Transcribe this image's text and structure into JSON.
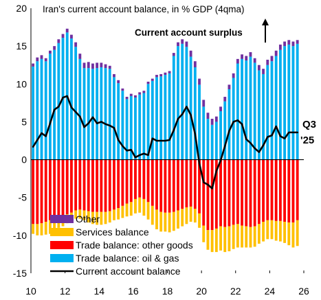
{
  "chart_data": {
    "type": "bar",
    "title": "Iran's current account balance, in % GDP (4qma)",
    "annotation": "Current account surplus",
    "end_label": [
      "Q3",
      "'25"
    ],
    "ylim": [
      -15,
      20
    ],
    "yticks": [
      20,
      15,
      10,
      5,
      0,
      -5,
      -10,
      -15
    ],
    "xlim": [
      2010,
      2026
    ],
    "xticks": [
      {
        "value": 2010,
        "label": "10"
      },
      {
        "value": 2012,
        "label": "12"
      },
      {
        "value": 2014,
        "label": "14"
      },
      {
        "value": 2016,
        "label": "16"
      },
      {
        "value": 2018,
        "label": "18"
      },
      {
        "value": 2020,
        "label": "20"
      },
      {
        "value": 2022,
        "label": "22"
      },
      {
        "value": 2024,
        "label": "24"
      },
      {
        "value": 2026,
        "label": "26"
      }
    ],
    "x": [
      2010.0,
      2010.25,
      2010.5,
      2010.75,
      2011.0,
      2011.25,
      2011.5,
      2011.75,
      2012.0,
      2012.25,
      2012.5,
      2012.75,
      2013.0,
      2013.25,
      2013.5,
      2013.75,
      2014.0,
      2014.25,
      2014.5,
      2014.75,
      2015.0,
      2015.25,
      2015.5,
      2015.75,
      2016.0,
      2016.25,
      2016.5,
      2016.75,
      2017.0,
      2017.25,
      2017.5,
      2017.75,
      2018.0,
      2018.25,
      2018.5,
      2018.75,
      2019.0,
      2019.25,
      2019.5,
      2019.75,
      2020.0,
      2020.25,
      2020.5,
      2020.75,
      2021.0,
      2021.25,
      2021.5,
      2021.75,
      2022.0,
      2022.25,
      2022.5,
      2022.75,
      2023.0,
      2023.25,
      2023.5,
      2023.75,
      2024.0,
      2024.25,
      2024.5,
      2024.75,
      2025.0,
      2025.25,
      2025.5
    ],
    "series": [
      {
        "name": "Other",
        "color": "#7030a0",
        "values": [
          0.4,
          0.5,
          0.5,
          0.4,
          0.4,
          0.5,
          0.5,
          0.5,
          0.5,
          0.5,
          0.6,
          0.7,
          0.7,
          0.8,
          0.7,
          0.7,
          0.6,
          0.5,
          0.4,
          0.4,
          0.4,
          0.3,
          0.3,
          0.3,
          0.3,
          0.3,
          0.3,
          0.3,
          0.3,
          0.3,
          0.3,
          0.3,
          0.3,
          0.4,
          0.5,
          0.6,
          0.7,
          0.8,
          0.8,
          0.8,
          0.9,
          0.8,
          0.8,
          0.7,
          0.6,
          0.6,
          0.6,
          0.6,
          0.6,
          0.6,
          0.6,
          0.6,
          0.6,
          0.7,
          0.7,
          0.7,
          0.7,
          0.7,
          0.7,
          0.6,
          0.6,
          0.6,
          0.5
        ]
      },
      {
        "name": "Services balance",
        "color": "#ffc000",
        "values": [
          -1.3,
          -1.5,
          -1.6,
          -1.7,
          -1.8,
          -1.7,
          -1.5,
          -1.4,
          -1.2,
          -1.1,
          -1.1,
          -1.2,
          -1.3,
          -1.5,
          -1.6,
          -1.7,
          -1.7,
          -1.6,
          -1.5,
          -1.4,
          -1.5,
          -1.6,
          -1.7,
          -1.8,
          -1.9,
          -2.0,
          -2.2,
          -2.3,
          -2.5,
          -2.6,
          -2.6,
          -2.5,
          -2.6,
          -2.5,
          -2.4,
          -2.3,
          -2.2,
          -2.0,
          -1.8,
          -1.9,
          -2.2,
          -2.6,
          -2.9,
          -3.1,
          -3.2,
          -3.3,
          -3.3,
          -3.2,
          -3.1,
          -2.9,
          -2.8,
          -2.7,
          -2.7,
          -2.6,
          -2.6,
          -2.5,
          -2.5,
          -2.6,
          -2.7,
          -2.8,
          -3.0,
          -3.3,
          -3.4
        ]
      },
      {
        "name": "Trade balance: other goods",
        "color": "#ff0000",
        "values": [
          -8.5,
          -8.5,
          -8.4,
          -8.2,
          -8.0,
          -7.7,
          -7.5,
          -7.4,
          -7.2,
          -7.0,
          -6.7,
          -6.6,
          -6.7,
          -6.8,
          -6.9,
          -6.9,
          -6.9,
          -6.9,
          -6.8,
          -6.6,
          -6.4,
          -6.1,
          -5.8,
          -5.6,
          -5.2,
          -5.0,
          -5.2,
          -5.6,
          -6.1,
          -6.6,
          -6.9,
          -7.0,
          -7.0,
          -6.9,
          -6.7,
          -6.5,
          -6.3,
          -6.2,
          -6.5,
          -7.1,
          -8.7,
          -9.3,
          -9.3,
          -9.1,
          -8.8,
          -8.9,
          -8.8,
          -8.6,
          -8.5,
          -8.7,
          -8.8,
          -8.9,
          -8.8,
          -8.5,
          -8.2,
          -8.0,
          -8.0,
          -8.1,
          -8.1,
          -8.2,
          -8.3,
          -8.3,
          -8.0
        ]
      },
      {
        "name": "Trade balance: oil & gas",
        "color": "#00b0f0",
        "values": [
          12.3,
          13.0,
          13.3,
          13.0,
          14.0,
          14.5,
          15.4,
          16.1,
          16.8,
          16.0,
          14.9,
          13.3,
          12.1,
          12.1,
          12.0,
          12.1,
          12.2,
          12.1,
          12.0,
          10.9,
          10.1,
          9.1,
          8.0,
          8.4,
          8.2,
          8.6,
          8.8,
          10.0,
          10.4,
          10.9,
          11.0,
          11.2,
          11.4,
          13.7,
          15.0,
          15.3,
          14.9,
          13.6,
          12.2,
          9.9,
          7.0,
          5.4,
          4.6,
          5.0,
          6.4,
          7.7,
          9.3,
          10.8,
          12.7,
          13.3,
          13.1,
          13.6,
          12.8,
          11.8,
          11.3,
          12.5,
          13.0,
          13.7,
          14.5,
          15.0,
          15.2,
          15.0,
          15.3
        ]
      },
      {
        "name": "Current account balance",
        "color": "#000000",
        "type": "line",
        "values": [
          1.7,
          2.6,
          3.5,
          3.1,
          4.8,
          6.6,
          7.0,
          8.2,
          8.4,
          6.9,
          6.3,
          5.7,
          4.3,
          4.8,
          5.6,
          4.8,
          5.0,
          4.7,
          4.5,
          4.2,
          2.6,
          1.8,
          1.2,
          1.3,
          0.3,
          0.6,
          0.8,
          0.6,
          2.8,
          2.5,
          2.5,
          2.5,
          2.6,
          3.9,
          5.4,
          6.0,
          7.0,
          5.9,
          3.4,
          -0.5,
          -3.0,
          -3.3,
          -3.8,
          -1.5,
          -0.1,
          1.8,
          3.8,
          5.0,
          5.2,
          4.7,
          2.7,
          2.2,
          1.5,
          1.0,
          1.9,
          3.0,
          3.2,
          4.4,
          3.1,
          2.8,
          3.6,
          3.6,
          3.6
        ]
      }
    ],
    "legend": {
      "placement": "bottom-left"
    },
    "grid": false
  }
}
